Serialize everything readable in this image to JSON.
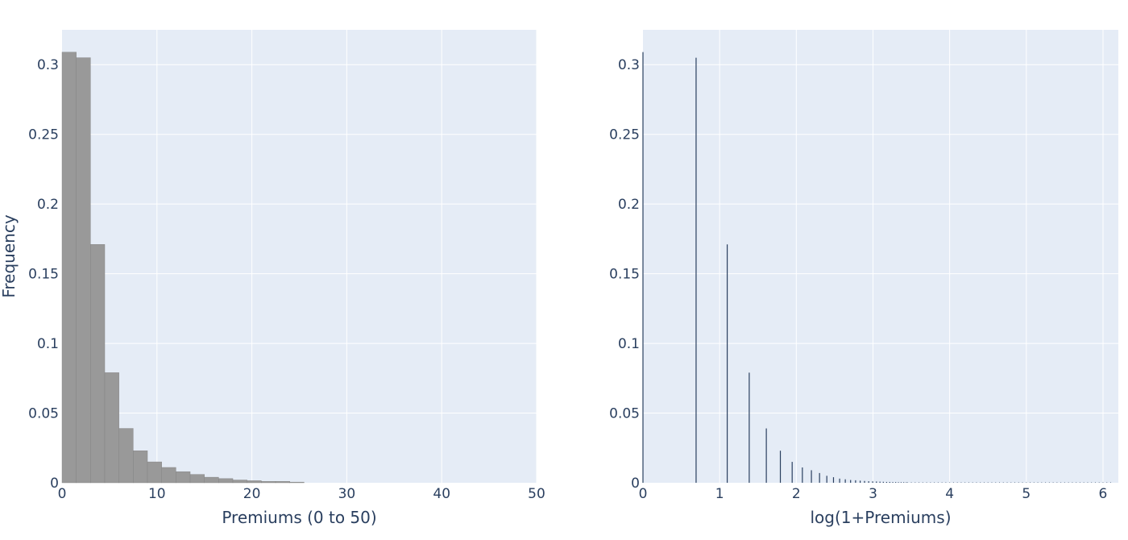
{
  "chart_data": [
    {
      "type": "bar",
      "xlabel": "Premiums (0 to 50)",
      "ylabel": "Frequency",
      "xlim": [
        0,
        50
      ],
      "ylim": [
        0,
        0.325
      ],
      "xticks": [
        "0",
        "10",
        "20",
        "30",
        "40",
        "50"
      ],
      "yticks": [
        "0",
        "0.05",
        "0.1",
        "0.15",
        "0.2",
        "0.25",
        "0.3"
      ],
      "bin_width": 1.5,
      "x": [
        0,
        1.5,
        3,
        4.5,
        6,
        7.5,
        9,
        10.5,
        12,
        13.5,
        15,
        16.5,
        18,
        19.5,
        21,
        22.5,
        24
      ],
      "values": [
        0.309,
        0.305,
        0.171,
        0.079,
        0.039,
        0.023,
        0.015,
        0.011,
        0.008,
        0.006,
        0.004,
        0.003,
        0.002,
        0.0015,
        0.001,
        0.001,
        0.0005
      ],
      "colors": {
        "bar": "#999999",
        "bar_outline": "#7f7f7f",
        "plot_bg": "#e5ecf6",
        "grid": "#ffffff"
      },
      "grid": true
    },
    {
      "type": "bar",
      "xlabel": "log(1+Premiums)",
      "ylabel": "",
      "xlim": [
        0,
        6.2
      ],
      "ylim": [
        0,
        0.325
      ],
      "xticks": [
        "0",
        "1",
        "2",
        "3",
        "4",
        "5",
        "6"
      ],
      "yticks": [
        "0",
        "0.05",
        "0.1",
        "0.15",
        "0.2",
        "0.25",
        "0.3"
      ],
      "x": [
        0,
        0.693,
        1.099,
        1.386,
        1.609,
        1.792,
        1.946,
        2.079,
        2.197,
        2.303,
        2.398,
        2.485,
        2.565,
        2.639,
        2.708,
        2.773,
        2.833,
        2.89,
        2.944,
        2.996,
        3.045,
        3.091,
        3.135,
        3.178,
        3.219,
        3.258,
        3.296,
        3.332,
        3.367,
        3.401,
        3.434
      ],
      "values": [
        0.309,
        0.305,
        0.171,
        0.079,
        0.039,
        0.023,
        0.015,
        0.011,
        0.009,
        0.007,
        0.005,
        0.004,
        0.003,
        0.0025,
        0.002,
        0.0018,
        0.0015,
        0.0013,
        0.0011,
        0.001,
        0.0009,
        0.0008,
        0.0007,
        0.0006,
        0.0006,
        0.0005,
        0.0005,
        0.0004,
        0.0004,
        0.0004,
        0.0003
      ],
      "tail_value": 0.0003,
      "tail_range": [
        3.45,
        6.1
      ],
      "colors": {
        "bar": "#2a3f5f",
        "plot_bg": "#e5ecf6",
        "grid": "#ffffff"
      },
      "grid": true
    }
  ]
}
